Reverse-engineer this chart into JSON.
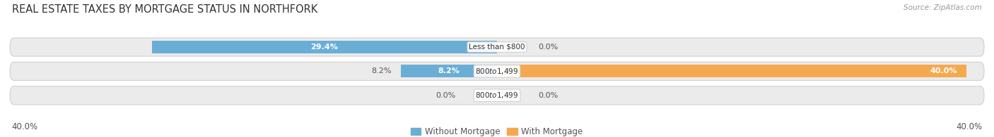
{
  "title": "REAL ESTATE TAXES BY MORTGAGE STATUS IN NORTHFORK",
  "source": "Source: ZipAtlas.com",
  "categories": [
    "Less than $800",
    "$800 to $1,499",
    "$800 to $1,499"
  ],
  "without_mortgage": [
    29.4,
    8.2,
    0.0
  ],
  "with_mortgage": [
    0.0,
    40.0,
    0.0
  ],
  "axis_max": 40.0,
  "without_color": "#6aaed6",
  "with_color": "#f5a94e",
  "with_color_light": "#f9d4a0",
  "without_color_light": "#aecde4",
  "bg_row_color": "#ebebeb",
  "bar_height": 0.52,
  "title_fontsize": 10.5,
  "label_fontsize": 8.0,
  "tick_fontsize": 8.5,
  "legend_fontsize": 8.5,
  "source_fontsize": 7.5,
  "bottom_axis_label_left": "40.0%",
  "bottom_axis_label_right": "40.0%"
}
